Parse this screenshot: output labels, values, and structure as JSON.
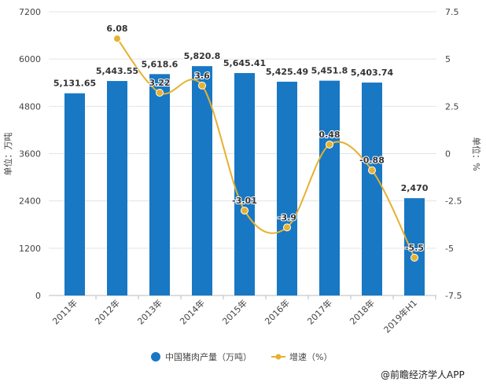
{
  "chart_data": {
    "type": "bar+line",
    "categories": [
      "2011年",
      "2012年",
      "2013年",
      "2014年",
      "2015年",
      "2016年",
      "2017年",
      "2018年",
      "2019年H1"
    ],
    "series": [
      {
        "name": "中国猪肉产量（万吨）",
        "type": "bar",
        "axis": "left",
        "color": "#1878c4",
        "values": [
          5131.65,
          5443.55,
          5618.6,
          5820.8,
          5645.41,
          5425.49,
          5451.8,
          5403.74,
          2470
        ],
        "labels": [
          "5,131.65",
          "5,443.55",
          "5,618.6",
          "5,820.8",
          "5,645.41",
          "5,425.49",
          "5,451.8",
          "5,403.74",
          "2,470"
        ]
      },
      {
        "name": "增速（%）",
        "type": "line",
        "axis": "right",
        "color": "#e6b12e",
        "values": [
          null,
          6.08,
          3.22,
          3.6,
          -3.01,
          -3.9,
          0.48,
          -0.88,
          -5.5
        ],
        "labels": [
          "",
          "6.08",
          "3.22",
          "3.6",
          "-3.01",
          "-3.9",
          "0.48",
          "-0.88",
          "-5.5"
        ]
      }
    ],
    "left_axis": {
      "label": "单位：万吨",
      "range": [
        0,
        7200
      ],
      "ticks": [
        "0",
        "1200",
        "2400",
        "3600",
        "4800",
        "6000",
        "7200"
      ]
    },
    "right_axis": {
      "label": "单位：%",
      "range": [
        -7.5,
        7.5
      ],
      "ticks": [
        "-7.5",
        "-5",
        "-2.5",
        "0",
        "2.5",
        "5",
        "7.5"
      ]
    },
    "grid": true,
    "legend_placement": "bottom"
  },
  "source": "@前瞻经济学人APP"
}
